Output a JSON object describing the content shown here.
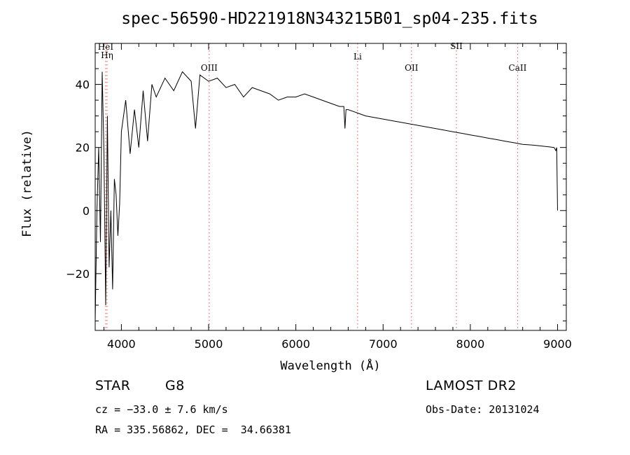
{
  "chart_data": {
    "type": "line",
    "title": "spec-56590-HD221918N343215B01_sp04-235.fits",
    "xlabel": "Wavelength (Å)",
    "ylabel": "Flux (relative)",
    "xlim": [
      3700,
      9100
    ],
    "ylim": [
      -38,
      53
    ],
    "x_ticks": [
      4000,
      5000,
      6000,
      7000,
      8000,
      9000
    ],
    "x_tick_labels": [
      "4000",
      "5000",
      "6000",
      "7000",
      "8000",
      "9000"
    ],
    "y_ticks": [
      -20,
      0,
      20,
      40
    ],
    "y_tick_labels": [
      "−20",
      "0",
      "20",
      "40"
    ],
    "grid": false,
    "line_markers": [
      {
        "label": "HeI",
        "x": 3820,
        "label_y": 51
      },
      {
        "label": "Hη",
        "x": 3836,
        "label_y": 48.3
      },
      {
        "label": "OIII",
        "x": 5007,
        "label_y": 44.3
      },
      {
        "label": "Li",
        "x": 6708,
        "label_y": 47.9
      },
      {
        "label": "OII",
        "x": 7325,
        "label_y": 44.3
      },
      {
        "label": "SII",
        "x": 7840,
        "label_y": 51.2
      },
      {
        "label": "CaII",
        "x": 8542,
        "label_y": 44.3
      }
    ],
    "series": [
      {
        "name": "flux",
        "x": [
          3700,
          3720,
          3740,
          3760,
          3780,
          3800,
          3820,
          3840,
          3860,
          3880,
          3900,
          3920,
          3940,
          3960,
          3980,
          4000,
          4050,
          4100,
          4150,
          4200,
          4250,
          4300,
          4350,
          4400,
          4500,
          4600,
          4700,
          4800,
          4850,
          4900,
          5000,
          5100,
          5200,
          5300,
          5400,
          5500,
          5600,
          5700,
          5800,
          5900,
          6000,
          6100,
          6200,
          6300,
          6400,
          6500,
          6550,
          6563,
          6575,
          6600,
          6700,
          6800,
          6900,
          7000,
          7100,
          7200,
          7300,
          7400,
          7500,
          7600,
          7700,
          7800,
          7900,
          8000,
          8100,
          8200,
          8300,
          8400,
          8500,
          8600,
          8700,
          8800,
          8900,
          8960,
          8980,
          8990,
          9000
        ],
        "y": [
          -35,
          0,
          20,
          -10,
          44,
          18,
          -30,
          30,
          -18,
          0,
          -25,
          10,
          5,
          -8,
          2,
          25,
          35,
          18,
          32,
          20,
          38,
          22,
          40,
          36,
          42,
          38,
          44,
          41,
          26,
          43,
          41,
          42,
          39,
          40,
          36,
          39,
          38,
          37,
          35,
          36,
          36,
          37,
          36,
          35,
          34,
          33,
          33,
          26,
          32,
          32,
          31,
          30,
          29.5,
          29,
          28.5,
          28,
          27.5,
          27,
          26.5,
          26,
          25.5,
          25,
          24.5,
          24,
          23.5,
          23,
          22.5,
          22,
          21.5,
          21,
          20.8,
          20.5,
          20.2,
          20,
          19,
          20,
          0
        ]
      }
    ]
  },
  "info": {
    "object_class": "STAR",
    "subclass": "G8",
    "redshift": "cz = −33.0 ± 7.6 km/s",
    "coords": "RA = 335.56862, DEC =  34.66381",
    "survey": "LAMOST DR2",
    "obs_date": "Obs-Date: 20131024"
  }
}
